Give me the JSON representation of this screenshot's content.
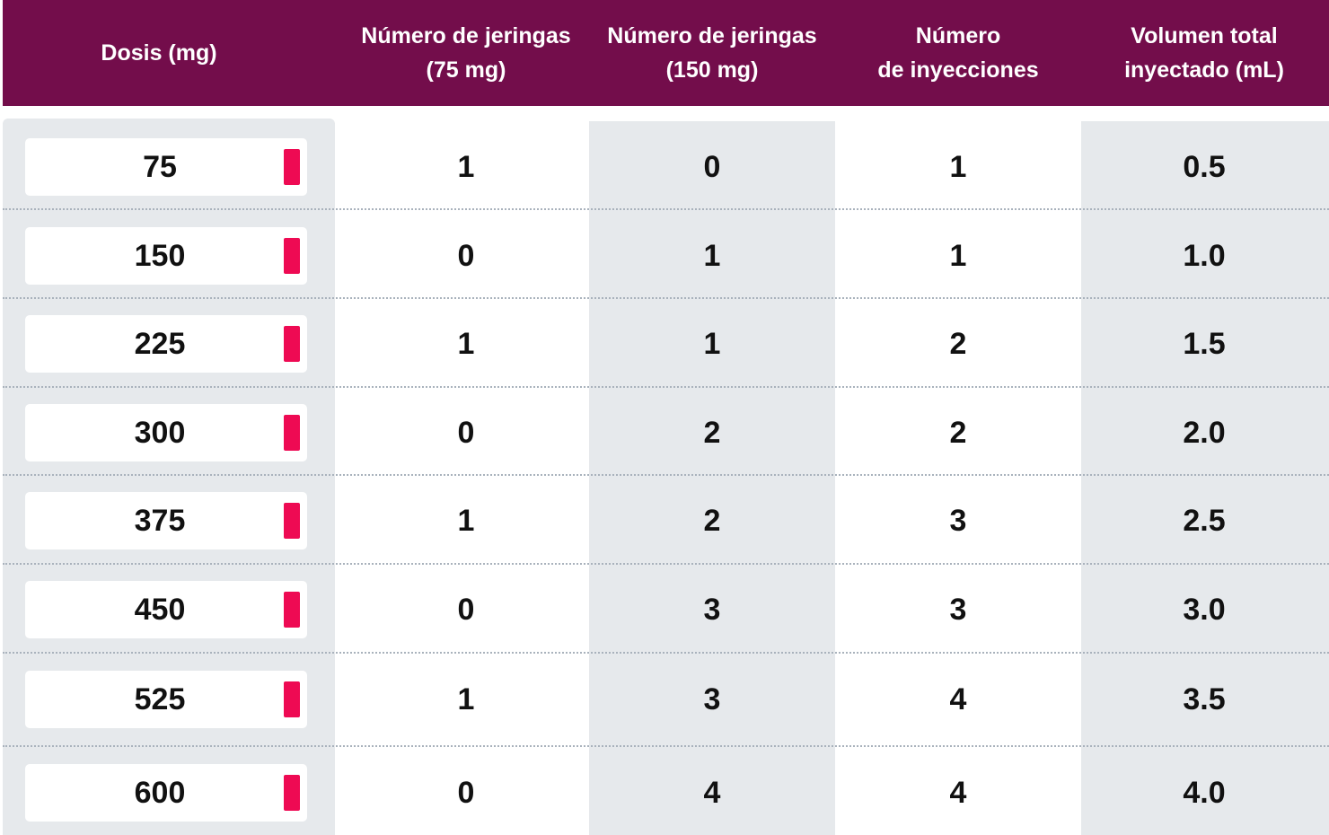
{
  "table": {
    "headers": [
      {
        "lines": [
          "Dosis (mg)"
        ]
      },
      {
        "lines": [
          "Número de jeringas",
          "(75 mg)"
        ]
      },
      {
        "lines": [
          "Número de jeringas",
          "(150 mg)"
        ]
      },
      {
        "lines": [
          "Número",
          "de inyecciones"
        ]
      },
      {
        "lines": [
          "Volumen total",
          "inyectado (mL)"
        ]
      }
    ],
    "rows": [
      {
        "dose": "75",
        "syringes_75": "1",
        "syringes_150": "0",
        "injections": "1",
        "volume": "0.5"
      },
      {
        "dose": "150",
        "syringes_75": "0",
        "syringes_150": "1",
        "injections": "1",
        "volume": "1.0"
      },
      {
        "dose": "225",
        "syringes_75": "1",
        "syringes_150": "1",
        "injections": "2",
        "volume": "1.5"
      },
      {
        "dose": "300",
        "syringes_75": "0",
        "syringes_150": "2",
        "injections": "2",
        "volume": "2.0"
      },
      {
        "dose": "375",
        "syringes_75": "1",
        "syringes_150": "2",
        "injections": "3",
        "volume": "2.5"
      },
      {
        "dose": "450",
        "syringes_75": "0",
        "syringes_150": "3",
        "injections": "3",
        "volume": "3.0"
      },
      {
        "dose": "525",
        "syringes_75": "1",
        "syringes_150": "3",
        "injections": "4",
        "volume": "3.5"
      },
      {
        "dose": "600",
        "syringes_75": "0",
        "syringes_150": "4",
        "injections": "4",
        "volume": "4.0"
      }
    ]
  },
  "colors": {
    "header_bg": "#730d4b",
    "marker": "#ee0a53",
    "stripe": "#e6e9ec"
  }
}
